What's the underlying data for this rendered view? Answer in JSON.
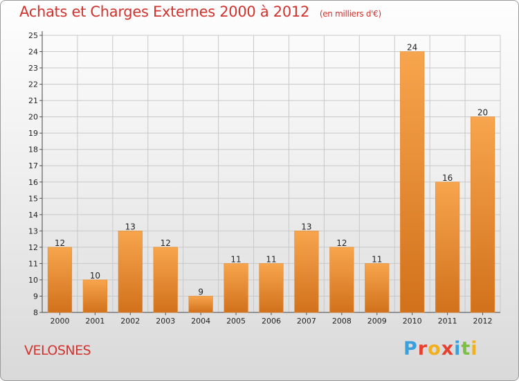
{
  "title": {
    "main": "Achats et Charges Externes 2000 à 2012",
    "unit": "(en milliers d'€)"
  },
  "town": "VELOSNES",
  "logo": {
    "letters": [
      "P",
      "r",
      "o",
      "x",
      "i",
      "t",
      "i"
    ],
    "colors": [
      "#3aa0dc",
      "#e8402e",
      "#f2b01e",
      "#e8402e",
      "#3aa0dc",
      "#7bc043",
      "#f2b01e"
    ]
  },
  "colors": {
    "bar_light": "#f7a54e",
    "bar_dark": "#d2711c",
    "title": "#d2322d",
    "grid": "#c8c8c8"
  },
  "chart_data": {
    "type": "bar",
    "title": "Achats et Charges Externes 2000 à 2012",
    "subtitle": "(en milliers d'€)",
    "categories": [
      "2000",
      "2001",
      "2002",
      "2003",
      "2004",
      "2005",
      "2006",
      "2007",
      "2008",
      "2009",
      "2010",
      "2011",
      "2012"
    ],
    "values": [
      12,
      10,
      13,
      12,
      9,
      11,
      11,
      13,
      12,
      11,
      24,
      16,
      20
    ],
    "ylim": [
      8,
      25
    ],
    "yticks": [
      8,
      9,
      10,
      11,
      12,
      13,
      14,
      15,
      16,
      17,
      18,
      19,
      20,
      21,
      22,
      23,
      24,
      25
    ],
    "grid": true
  }
}
